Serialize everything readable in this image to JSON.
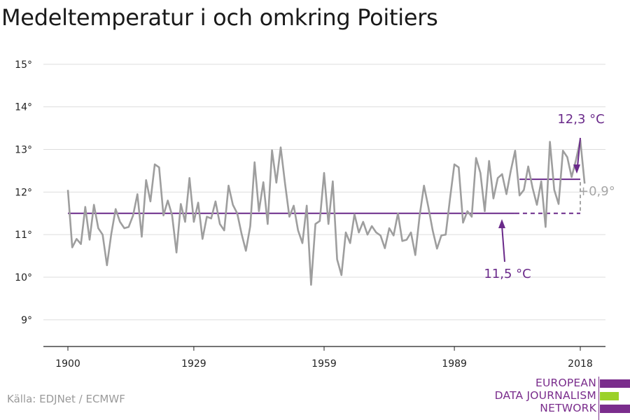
{
  "title": "Medeltemperatur i och omkring Poitiers",
  "source": "Källa: EDJNet / ECMWF",
  "logo": {
    "lines": [
      "EUROPEAN",
      "DATA JOURNALISM",
      "NETWORK"
    ],
    "colors": {
      "purple": "#7a2d8c",
      "green": "#9bd12a"
    }
  },
  "colors": {
    "line": "#9e9e9e",
    "reference": "#6a2a8a",
    "annotation": "#6a2a8a",
    "delta": "#a6a6a6",
    "grid": "#dddddd"
  },
  "chart_data": {
    "type": "line",
    "title": "Medeltemperatur i och omkring Poitiers",
    "x_ticks": [
      1900,
      1929,
      1959,
      1989,
      2018
    ],
    "y_ticks": [
      9,
      10,
      11,
      12,
      13,
      14,
      15
    ],
    "y_tick_labels": [
      "9°",
      "10°",
      "11°",
      "12°",
      "13°",
      "14°",
      "15°"
    ],
    "xlim": [
      1900,
      2019
    ],
    "ylim": [
      8.5,
      15.3
    ],
    "grid": true,
    "series": [
      {
        "x": [
          1900,
          1901,
          1902,
          1903,
          1904,
          1905,
          1906,
          1907,
          1908,
          1909,
          1910,
          1911,
          1912,
          1913,
          1914,
          1915,
          1916,
          1917,
          1918,
          1919,
          1920,
          1921,
          1922,
          1923,
          1924,
          1925,
          1926,
          1927,
          1928,
          1929,
          1930,
          1931,
          1932,
          1933,
          1934,
          1935,
          1936,
          1937,
          1938,
          1939,
          1940,
          1941,
          1942,
          1943,
          1944,
          1945,
          1946,
          1947,
          1948,
          1949,
          1950,
          1951,
          1952,
          1953,
          1954,
          1955,
          1956,
          1957,
          1958,
          1959,
          1960,
          1961,
          1962,
          1963,
          1964,
          1965,
          1966,
          1967,
          1968,
          1969,
          1970,
          1971,
          1972,
          1973,
          1974,
          1975,
          1976,
          1977,
          1978,
          1979,
          1980,
          1981,
          1982,
          1983,
          1984,
          1985,
          1986,
          1987,
          1988,
          1989,
          1990,
          1991,
          1992,
          1993,
          1994,
          1995,
          1996,
          1997,
          1998,
          1999,
          2000,
          2001,
          2002,
          2003,
          2004,
          2005,
          2006,
          2007,
          2008,
          2009,
          2010,
          2011,
          2012,
          2013,
          2014,
          2015,
          2016,
          2017,
          2018,
          2019
        ],
        "values": [
          12.05,
          10.7,
          10.9,
          10.78,
          11.65,
          10.88,
          11.7,
          11.15,
          11.0,
          10.28,
          11.02,
          11.6,
          11.3,
          11.15,
          11.18,
          11.45,
          11.95,
          10.95,
          12.28,
          11.78,
          12.65,
          12.58,
          11.45,
          11.8,
          11.45,
          10.58,
          11.72,
          11.3,
          12.33,
          11.3,
          11.75,
          10.9,
          11.42,
          11.38,
          11.78,
          11.25,
          11.1,
          12.15,
          11.7,
          11.5,
          11.02,
          10.62,
          11.2,
          12.7,
          11.55,
          12.23,
          11.25,
          12.98,
          12.22,
          13.05,
          12.2,
          11.42,
          11.68,
          11.1,
          10.8,
          11.68,
          9.82,
          11.25,
          11.32,
          12.45,
          11.25,
          12.25,
          10.42,
          10.05,
          11.05,
          10.8,
          11.48,
          11.05,
          11.3,
          11.0,
          11.2,
          11.05,
          10.98,
          10.68,
          11.15,
          10.98,
          11.5,
          10.85,
          10.88,
          11.05,
          10.52,
          11.45,
          12.15,
          11.65,
          11.1,
          10.67,
          10.98,
          11.0,
          11.85,
          12.65,
          12.58,
          11.28,
          11.55,
          11.42,
          12.8,
          12.45,
          11.55,
          12.73,
          11.85,
          12.33,
          12.42,
          11.95,
          12.5,
          12.97,
          11.92,
          12.05,
          12.6,
          12.1,
          11.7,
          12.25,
          11.18,
          13.18,
          12.05,
          11.72,
          12.97,
          12.82,
          12.35,
          12.75,
          13.22,
          12.2
        ]
      }
    ],
    "reference_lines": [
      {
        "value": 11.5,
        "x_start": 1900,
        "x_end": 2003,
        "x_dashed_end": 2018,
        "label": "11,5 °C"
      },
      {
        "value": 12.3,
        "x_start": 2004,
        "x_end": 2018,
        "label": "12,3 °C"
      }
    ],
    "difference_label": "+0,9°"
  }
}
